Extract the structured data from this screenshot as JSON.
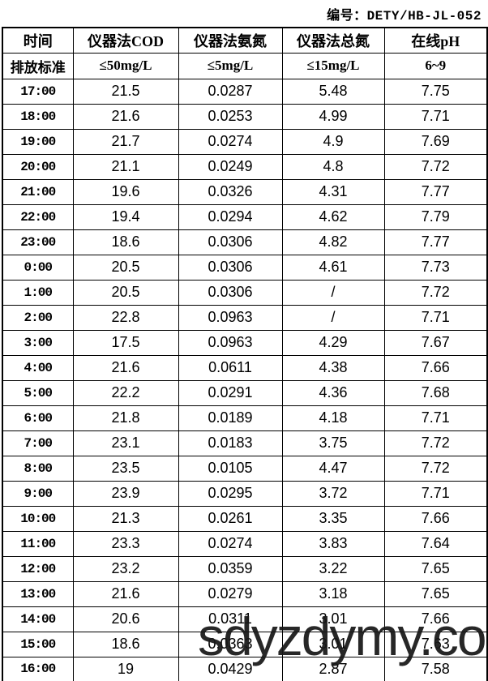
{
  "doc_number": "编号：DETY/HB-JL-052",
  "watermark_text": "sdyzdymy.co",
  "table": {
    "columns": [
      "时间",
      "仪器法COD",
      "仪器法氨氮",
      "仪器法总氮",
      "在线pH"
    ],
    "standards": [
      "排放标准",
      "≤50mg/L",
      "≤5mg/L",
      "≤15mg/L",
      "6~9"
    ],
    "rows": [
      [
        "17:00",
        "21.5",
        "0.0287",
        "5.48",
        "7.75"
      ],
      [
        "18:00",
        "21.6",
        "0.0253",
        "4.99",
        "7.71"
      ],
      [
        "19:00",
        "21.7",
        "0.0274",
        "4.9",
        "7.69"
      ],
      [
        "20:00",
        "21.1",
        "0.0249",
        "4.8",
        "7.72"
      ],
      [
        "21:00",
        "19.6",
        "0.0326",
        "4.31",
        "7.77"
      ],
      [
        "22:00",
        "19.4",
        "0.0294",
        "4.62",
        "7.79"
      ],
      [
        "23:00",
        "18.6",
        "0.0306",
        "4.82",
        "7.77"
      ],
      [
        "0:00",
        "20.5",
        "0.0306",
        "4.61",
        "7.73"
      ],
      [
        "1:00",
        "20.5",
        "0.0306",
        "/",
        "7.72"
      ],
      [
        "2:00",
        "22.8",
        "0.0963",
        "/",
        "7.71"
      ],
      [
        "3:00",
        "17.5",
        "0.0963",
        "4.29",
        "7.67"
      ],
      [
        "4:00",
        "21.6",
        "0.0611",
        "4.38",
        "7.66"
      ],
      [
        "5:00",
        "22.2",
        "0.0291",
        "4.36",
        "7.68"
      ],
      [
        "6:00",
        "21.8",
        "0.0189",
        "4.18",
        "7.71"
      ],
      [
        "7:00",
        "23.1",
        "0.0183",
        "3.75",
        "7.72"
      ],
      [
        "8:00",
        "23.5",
        "0.0105",
        "4.47",
        "7.72"
      ],
      [
        "9:00",
        "23.9",
        "0.0295",
        "3.72",
        "7.71"
      ],
      [
        "10:00",
        "21.3",
        "0.0261",
        "3.35",
        "7.66"
      ],
      [
        "11:00",
        "23.3",
        "0.0274",
        "3.83",
        "7.64"
      ],
      [
        "12:00",
        "23.2",
        "0.0359",
        "3.22",
        "7.65"
      ],
      [
        "13:00",
        "21.6",
        "0.0279",
        "3.18",
        "7.65"
      ],
      [
        "14:00",
        "20.6",
        "0.0311",
        "3.01",
        "7.66"
      ],
      [
        "15:00",
        "18.6",
        "0.0363",
        "3.01",
        "7.63"
      ],
      [
        "16:00",
        "19",
        "0.0429",
        "2.87",
        "7.58"
      ]
    ]
  },
  "colors": {
    "border": "#000000",
    "text": "#000000",
    "watermark": "#171717",
    "background": "#ffffff"
  }
}
